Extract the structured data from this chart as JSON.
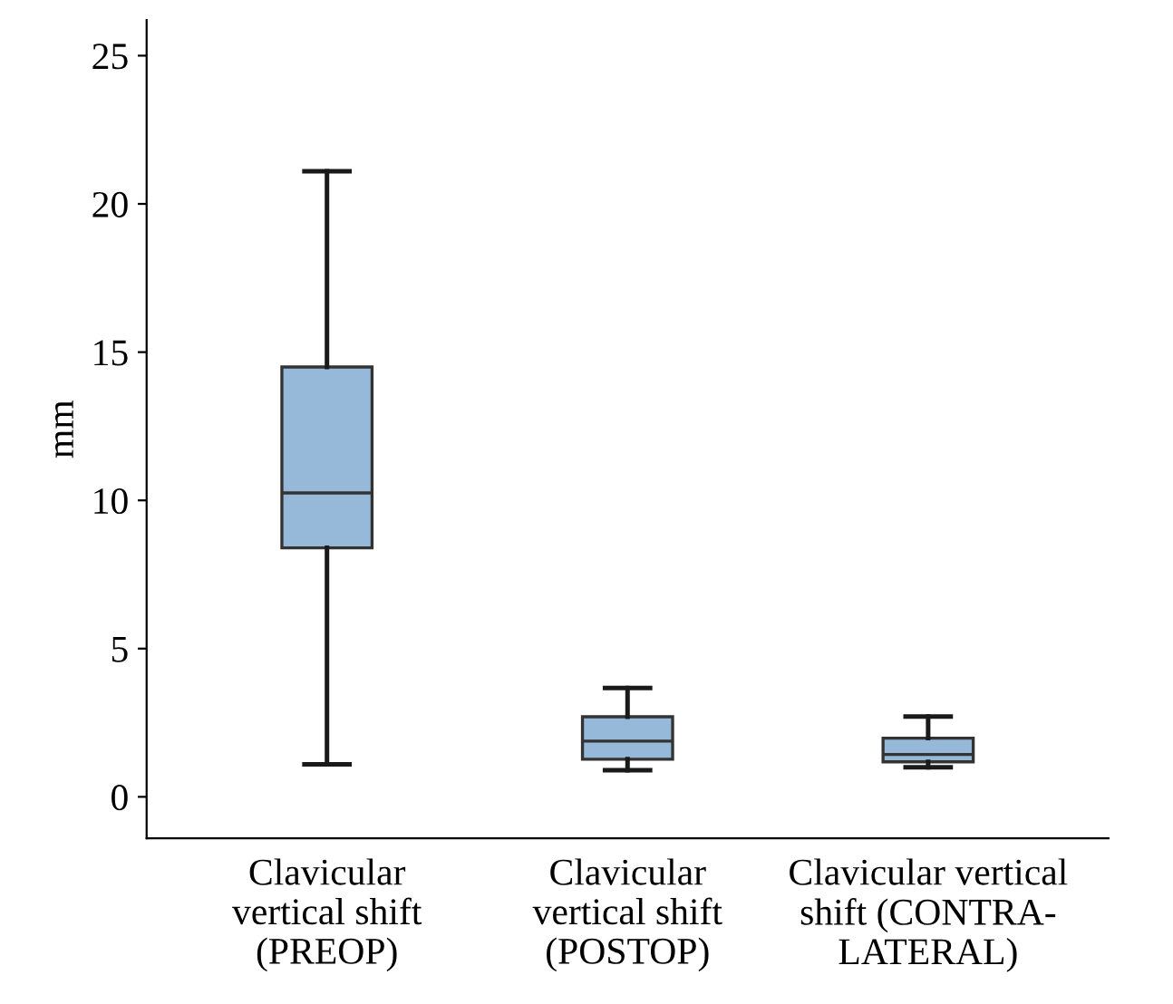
{
  "chart_data": {
    "type": "box",
    "ylabel": "mm",
    "categories": [
      "Clavicular\nvertical shift\n(PREOP)",
      "Clavicular\nvertical shift\n(POSTOP)",
      "Clavicular vertical\nshift (CONTRA-\nLATERAL)"
    ],
    "boxes": [
      {
        "low": 1.1,
        "q1": 8.4,
        "median": 10.25,
        "q3": 14.5,
        "high": 21.1
      },
      {
        "low": 0.9,
        "q1": 1.27,
        "median": 1.88,
        "q3": 2.7,
        "high": 3.67
      },
      {
        "low": 1.0,
        "q1": 1.18,
        "median": 1.43,
        "q3": 1.98,
        "high": 2.71
      }
    ],
    "color": "#97b9d9",
    "ylim": [
      -1.4,
      26.2
    ],
    "yticks": [
      0,
      5,
      10,
      15,
      20,
      25
    ],
    "grid": false
  }
}
